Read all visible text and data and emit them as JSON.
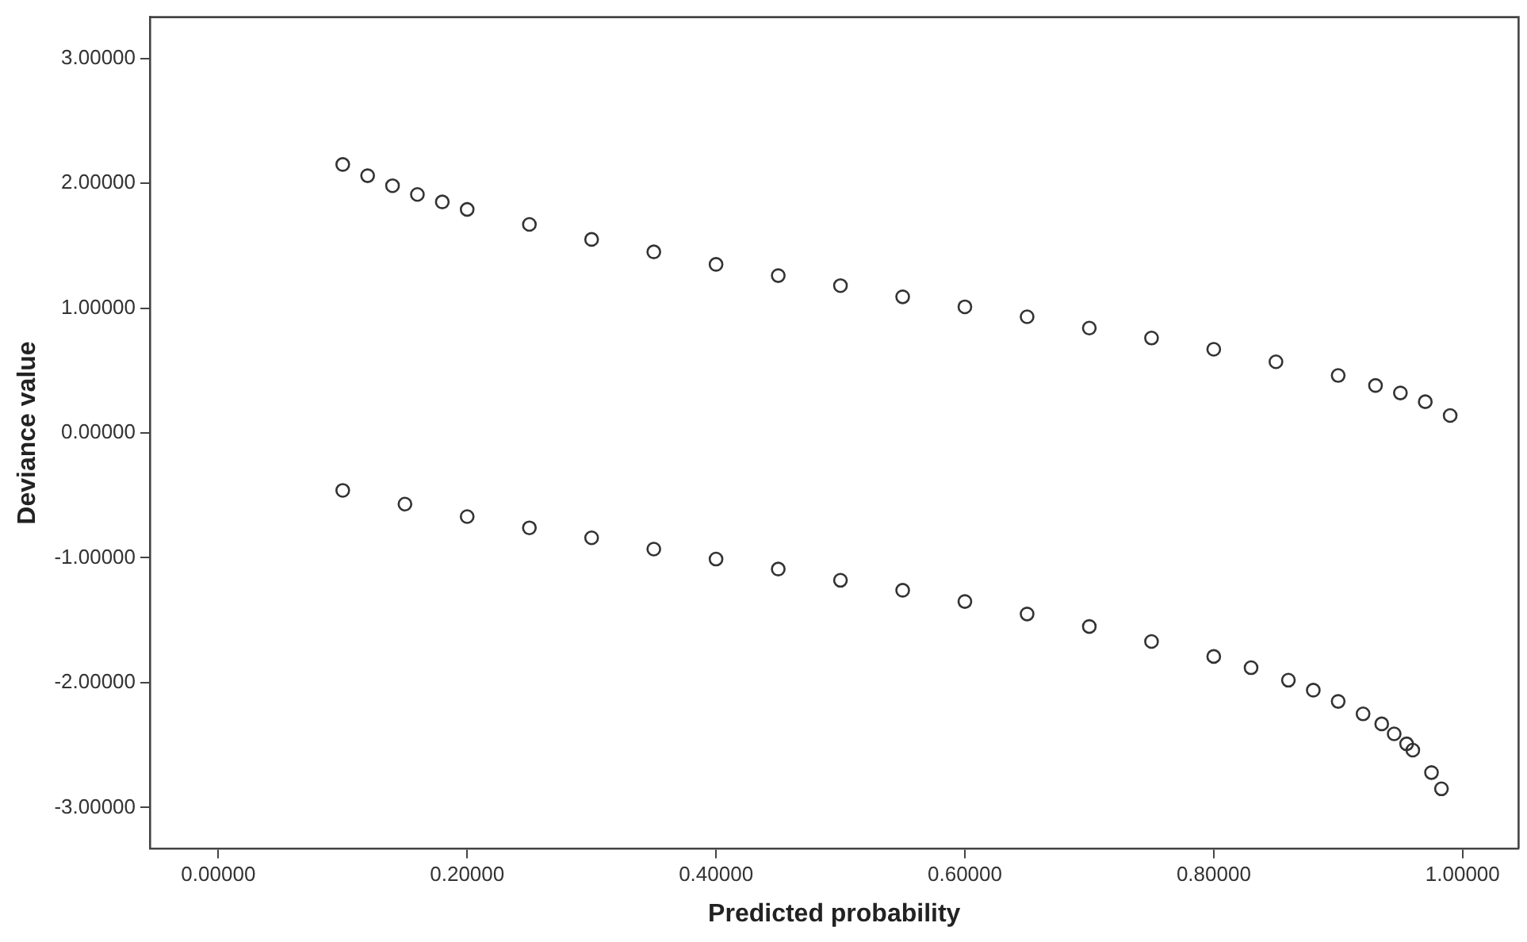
{
  "chart_data": {
    "type": "scatter",
    "xlabel": "Predicted probability",
    "ylabel": "Deviance value",
    "marker": "circle",
    "grid": false,
    "legend": false,
    "xlim": [
      -0.055,
      1.045
    ],
    "ylim": [
      -3.33,
      3.33
    ],
    "xticks": [
      {
        "value": 0,
        "label": "0.00000"
      },
      {
        "value": 0.2,
        "label": "0.20000"
      },
      {
        "value": 0.4,
        "label": "0.40000"
      },
      {
        "value": 0.6,
        "label": "0.60000"
      },
      {
        "value": 0.8,
        "label": "0.80000"
      },
      {
        "value": 1,
        "label": "1.00000"
      }
    ],
    "yticks": [
      {
        "value": -3,
        "label": "-3.00000"
      },
      {
        "value": -2,
        "label": "-2.00000"
      },
      {
        "value": -1,
        "label": "-1.00000"
      },
      {
        "value": 0,
        "label": "0.00000"
      },
      {
        "value": 1,
        "label": "1.00000"
      },
      {
        "value": 2,
        "label": "2.00000"
      },
      {
        "value": 3,
        "label": "3.00000"
      }
    ],
    "series": [
      {
        "color": "#333333",
        "x": [
          0.1,
          0.12,
          0.14,
          0.16,
          0.18,
          0.2,
          0.25,
          0.3,
          0.35,
          0.4,
          0.45,
          0.5,
          0.55,
          0.6,
          0.65,
          0.7,
          0.75,
          0.8,
          0.85,
          0.9,
          0.93,
          0.95,
          0.97,
          0.99
        ],
        "values": [
          2.15,
          2.06,
          1.98,
          1.91,
          1.85,
          1.79,
          1.67,
          1.55,
          1.45,
          1.35,
          1.26,
          1.18,
          1.09,
          1.01,
          0.93,
          0.84,
          0.76,
          0.67,
          0.57,
          0.46,
          0.38,
          0.32,
          0.25,
          0.14
        ]
      },
      {
        "color": "#333333",
        "x": [
          0.1,
          0.15,
          0.2,
          0.25,
          0.3,
          0.35,
          0.4,
          0.45,
          0.5,
          0.55,
          0.6,
          0.65,
          0.7,
          0.75,
          0.8,
          0.83,
          0.86,
          0.88,
          0.9,
          0.92,
          0.935,
          0.945,
          0.955,
          0.96,
          0.975,
          0.983
        ],
        "values": [
          -0.46,
          -0.57,
          -0.67,
          -0.76,
          -0.84,
          -0.93,
          -1.01,
          -1.09,
          -1.18,
          -1.26,
          -1.35,
          -1.45,
          -1.55,
          -1.67,
          -1.79,
          -1.88,
          -1.98,
          -2.06,
          -2.15,
          -2.25,
          -2.33,
          -2.41,
          -2.49,
          -2.54,
          -2.72,
          -2.85
        ]
      }
    ]
  }
}
